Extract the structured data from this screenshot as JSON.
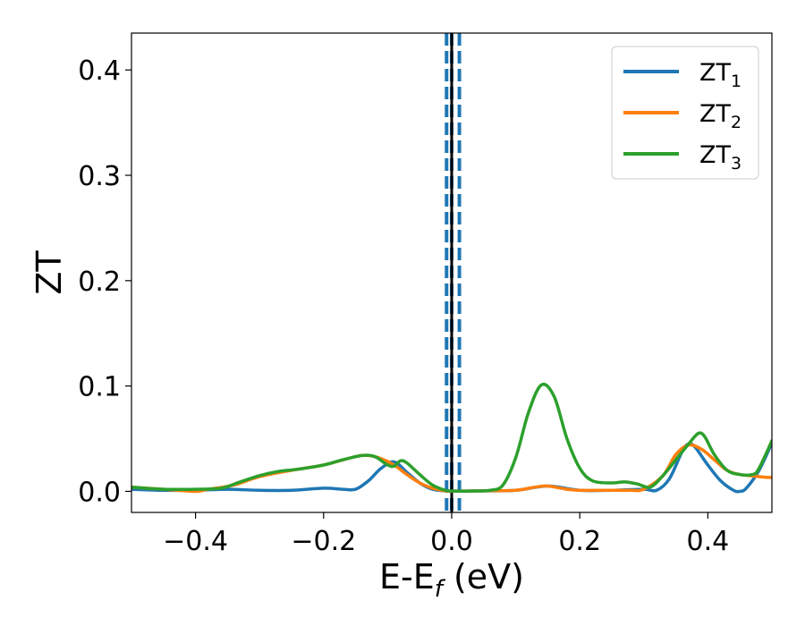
{
  "chart_data": {
    "type": "line",
    "xlabel": {
      "main": "E-E",
      "sub": "f",
      "tail": " (eV)"
    },
    "ylabel": "ZT",
    "xlim": [
      -0.5,
      0.5
    ],
    "ylim": [
      -0.02,
      0.435
    ],
    "xticks": [
      -0.4,
      -0.2,
      0.0,
      0.2,
      0.4
    ],
    "xtick_labels": [
      "−0.4",
      "−0.2",
      "0.0",
      "0.2",
      "0.4"
    ],
    "yticks": [
      0.0,
      0.1,
      0.2,
      0.3,
      0.4
    ],
    "ytick_labels": [
      "0.0",
      "0.1",
      "0.2",
      "0.3",
      "0.4"
    ],
    "grid": false,
    "legend_position": "top-right",
    "vertical_lines": [
      {
        "x": 0.0,
        "color": "#000000",
        "style": "solid"
      },
      {
        "x": -0.008,
        "color": "#1f77b4",
        "style": "dashed"
      },
      {
        "x": 0.0,
        "color": "#1f77b4",
        "style": "dashed"
      },
      {
        "x": 0.012,
        "color": "#1f77b4",
        "style": "dashed"
      }
    ],
    "series": [
      {
        "name": "ZT",
        "name_sub": "1",
        "color": "#1f77b4",
        "points": [
          [
            -0.5,
            0.002
          ],
          [
            -0.45,
            0.001
          ],
          [
            -0.4,
            0.001
          ],
          [
            -0.35,
            0.002
          ],
          [
            -0.3,
            0.001
          ],
          [
            -0.25,
            0.001
          ],
          [
            -0.2,
            0.003
          ],
          [
            -0.17,
            0.002
          ],
          [
            -0.15,
            0.002
          ],
          [
            -0.13,
            0.01
          ],
          [
            -0.11,
            0.022
          ],
          [
            -0.09,
            0.028
          ],
          [
            -0.07,
            0.018
          ],
          [
            -0.05,
            0.008
          ],
          [
            -0.03,
            0.002
          ],
          [
            -0.01,
            0.0005
          ],
          [
            0.0,
            0.0003
          ],
          [
            0.02,
            0.0003
          ],
          [
            0.05,
            0.0005
          ],
          [
            0.1,
            0.001
          ],
          [
            0.15,
            0.005
          ],
          [
            0.2,
            0.001
          ],
          [
            0.25,
            0.001
          ],
          [
            0.3,
            0.002
          ],
          [
            0.32,
            0.001
          ],
          [
            0.34,
            0.012
          ],
          [
            0.36,
            0.038
          ],
          [
            0.37,
            0.045
          ],
          [
            0.38,
            0.042
          ],
          [
            0.4,
            0.025
          ],
          [
            0.42,
            0.01
          ],
          [
            0.44,
            0.001
          ],
          [
            0.45,
            0.0
          ],
          [
            0.46,
            0.003
          ],
          [
            0.48,
            0.02
          ],
          [
            0.5,
            0.046
          ]
        ]
      },
      {
        "name": "ZT",
        "name_sub": "2",
        "color": "#ff7f0e",
        "points": [
          [
            -0.5,
            0.004
          ],
          [
            -0.45,
            0.002
          ],
          [
            -0.4,
            0.0
          ],
          [
            -0.38,
            0.002
          ],
          [
            -0.34,
            0.006
          ],
          [
            -0.3,
            0.014
          ],
          [
            -0.25,
            0.02
          ],
          [
            -0.2,
            0.025
          ],
          [
            -0.15,
            0.033
          ],
          [
            -0.13,
            0.034
          ],
          [
            -0.11,
            0.031
          ],
          [
            -0.09,
            0.025
          ],
          [
            -0.07,
            0.016
          ],
          [
            -0.05,
            0.008
          ],
          [
            -0.03,
            0.003
          ],
          [
            -0.01,
            0.0005
          ],
          [
            0.0,
            0.0003
          ],
          [
            0.02,
            0.0003
          ],
          [
            0.05,
            0.0005
          ],
          [
            0.1,
            0.001
          ],
          [
            0.13,
            0.004
          ],
          [
            0.15,
            0.005
          ],
          [
            0.18,
            0.002
          ],
          [
            0.2,
            0.001
          ],
          [
            0.25,
            0.001
          ],
          [
            0.28,
            0.001
          ],
          [
            0.3,
            0.002
          ],
          [
            0.33,
            0.015
          ],
          [
            0.35,
            0.035
          ],
          [
            0.37,
            0.044
          ],
          [
            0.39,
            0.04
          ],
          [
            0.41,
            0.03
          ],
          [
            0.43,
            0.02
          ],
          [
            0.45,
            0.016
          ],
          [
            0.48,
            0.014
          ],
          [
            0.5,
            0.013
          ]
        ]
      },
      {
        "name": "ZT",
        "name_sub": "3",
        "color": "#2ca02c",
        "points": [
          [
            -0.5,
            0.004
          ],
          [
            -0.45,
            0.002
          ],
          [
            -0.4,
            0.002
          ],
          [
            -0.36,
            0.003
          ],
          [
            -0.33,
            0.009
          ],
          [
            -0.3,
            0.015
          ],
          [
            -0.27,
            0.019
          ],
          [
            -0.24,
            0.021
          ],
          [
            -0.2,
            0.025
          ],
          [
            -0.17,
            0.03
          ],
          [
            -0.14,
            0.034
          ],
          [
            -0.12,
            0.033
          ],
          [
            -0.1,
            0.025
          ],
          [
            -0.09,
            0.024
          ],
          [
            -0.08,
            0.029
          ],
          [
            -0.07,
            0.027
          ],
          [
            -0.05,
            0.016
          ],
          [
            -0.03,
            0.006
          ],
          [
            -0.01,
            0.001
          ],
          [
            0.0,
            0.0003
          ],
          [
            0.03,
            0.0003
          ],
          [
            0.06,
            0.001
          ],
          [
            0.08,
            0.006
          ],
          [
            0.1,
            0.032
          ],
          [
            0.12,
            0.075
          ],
          [
            0.14,
            0.101
          ],
          [
            0.16,
            0.09
          ],
          [
            0.18,
            0.05
          ],
          [
            0.2,
            0.022
          ],
          [
            0.22,
            0.01
          ],
          [
            0.25,
            0.008
          ],
          [
            0.27,
            0.009
          ],
          [
            0.29,
            0.007
          ],
          [
            0.31,
            0.004
          ],
          [
            0.33,
            0.015
          ],
          [
            0.35,
            0.03
          ],
          [
            0.37,
            0.045
          ],
          [
            0.385,
            0.055
          ],
          [
            0.395,
            0.052
          ],
          [
            0.41,
            0.035
          ],
          [
            0.43,
            0.02
          ],
          [
            0.45,
            0.016
          ],
          [
            0.47,
            0.016
          ],
          [
            0.48,
            0.022
          ],
          [
            0.5,
            0.048
          ]
        ]
      }
    ]
  }
}
